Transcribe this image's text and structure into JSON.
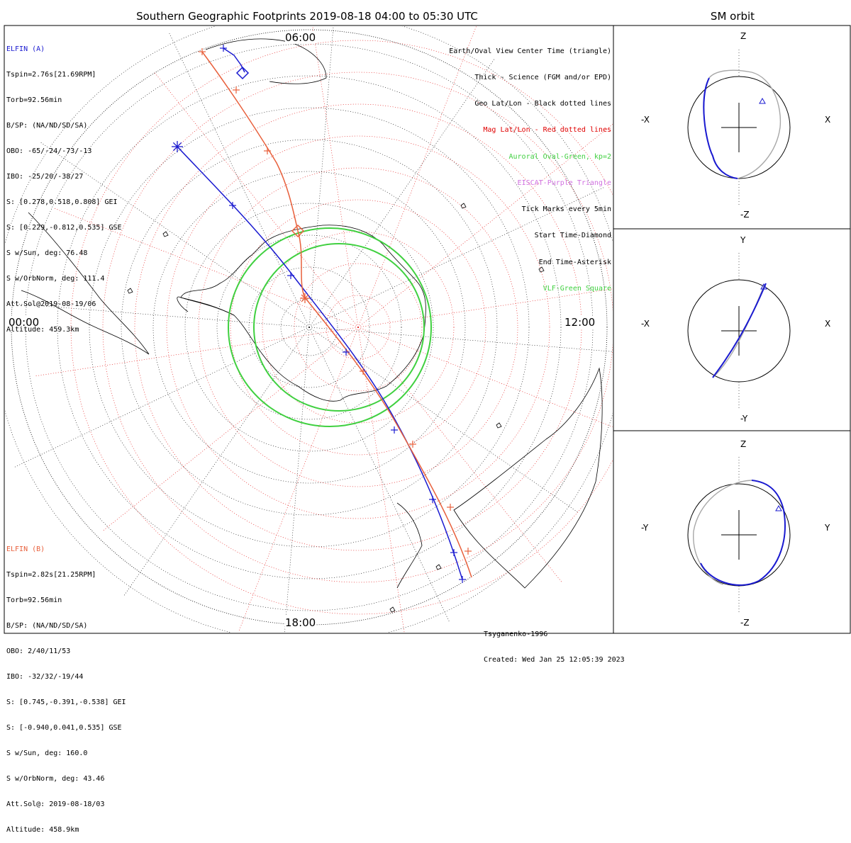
{
  "title": "Southern Geographic Footprints 2019-08-18 04:00 to 05:30 UTC",
  "sm_title": "SM orbit",
  "clock_labels": {
    "top": "06:00",
    "left": "00:00",
    "right": "12:00",
    "bottom": "18:00"
  },
  "elfin_a": {
    "header": "ELFIN (A)",
    "lines": [
      "Tspin=2.76s[21.69RPM]",
      "Torb=92.56min",
      "B/SP: (NA/ND/SD/SA)",
      "OBO: -65/-24/-73/-13",
      "IBO: -25/20/-38/27",
      "S: [0.278,0.518,0.808] GEI",
      "S: [0.229,-0.812,0.535] GSE",
      "S w/Sun, deg: 76.48",
      "S w/OrbNorm, deg: 111.4",
      "Att.Sol@2019-08-19/06",
      "Altitude: 459.3km"
    ],
    "color": "#1a1ad0"
  },
  "elfin_b": {
    "header": "ELFIN (B)",
    "lines": [
      "Tspin=2.82s[21.25RPM]",
      "Torb=92.56min",
      "B/SP: (NA/ND/SD/SA)",
      "OBO: 2/40/11/53",
      "IBO: -32/32/-19/44",
      "S: [0.745,-0.391,-0.538] GEI",
      "S: [-0.940,0.041,0.535] GSE",
      "S w/Sun, deg: 160.0",
      "S w/OrbNorm, deg: 43.46",
      "Att.Sol@: 2019-08-18/03",
      "Altitude: 458.9km"
    ],
    "color": "#e8603c"
  },
  "legend": [
    {
      "text": "Earth/Oval View Center Time (triangle)",
      "color": "#000000"
    },
    {
      "text": "Thick - Science (FGM and/or EPD)",
      "color": "#000000"
    },
    {
      "text": "Geo Lat/Lon - Black dotted lines",
      "color": "#000000"
    },
    {
      "text": "Mag Lat/Lon - Red dotted lines",
      "color": "#e00000"
    },
    {
      "text": "Auroral Oval-Green, kp=2",
      "color": "#40d040"
    },
    {
      "text": "EISCAT-Purple Triangle",
      "color": "#d070e0"
    },
    {
      "text": "Tick Marks every 5min",
      "color": "#000000"
    },
    {
      "text": "Start Time-Diamond",
      "color": "#000000"
    },
    {
      "text": "End Time-Asterisk",
      "color": "#000000"
    },
    {
      "text": "VLF-Green Square",
      "color": "#40d040"
    }
  ],
  "credit": {
    "model": "Tsyganenko-1996",
    "created": "Created: Wed Jan 25 12:05:39 2023"
  },
  "sm_panels": [
    {
      "name": "xz",
      "top": "Z",
      "bottom": "-Z",
      "left": "-X",
      "right": "X"
    },
    {
      "name": "xy",
      "top": "Y",
      "bottom": "-Y",
      "left": "-X",
      "right": "X"
    },
    {
      "name": "yz",
      "top": "Z",
      "bottom": "-Z",
      "left": "-Y",
      "right": "Y"
    }
  ],
  "colors": {
    "elfin_a": "#1a1ad0",
    "elfin_b": "#e8603c",
    "oval": "#40d040",
    "mag_grid": "#e00000",
    "geo_grid": "#000000"
  }
}
